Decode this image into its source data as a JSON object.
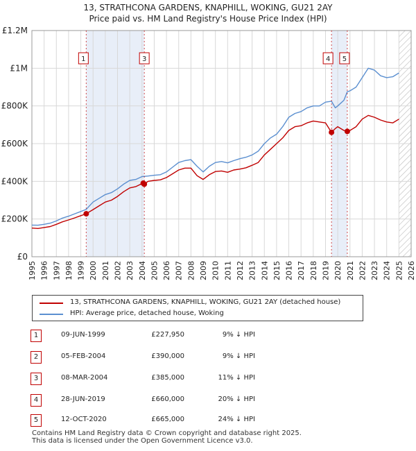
{
  "title_line1": "13, STRATHCONA GARDENS, KNAPHILL, WOKING, GU21 2AY",
  "title_line2": "Price paid vs. HM Land Registry's House Price Index (HPI)",
  "colors": {
    "hpi": "#5b8fd0",
    "price": "#c00000",
    "shade": "#e8eef8",
    "grid": "#d8d8d8",
    "marker": "#c00000"
  },
  "chart_data": {
    "type": "line",
    "x_range": [
      1995,
      2026
    ],
    "ylim": [
      0,
      1200000
    ],
    "y_ticks": [
      0,
      200000,
      400000,
      600000,
      800000,
      1000000,
      1200000
    ],
    "y_tick_labels": [
      "£0",
      "£200K",
      "£400K",
      "£600K",
      "£800K",
      "£1M",
      "£1.2M"
    ],
    "x_ticks": [
      1995,
      1996,
      1997,
      1998,
      1999,
      2000,
      2001,
      2002,
      2003,
      2004,
      2005,
      2006,
      2007,
      2008,
      2009,
      2010,
      2011,
      2012,
      2013,
      2014,
      2015,
      2016,
      2017,
      2018,
      2019,
      2020,
      2021,
      2022,
      2023,
      2024,
      2025,
      2026
    ],
    "grid": true,
    "shaded_ranges": [
      [
        1999.44,
        2004.19
      ],
      [
        2019.49,
        2020.78
      ]
    ],
    "hatched_from": 2025.0,
    "series": [
      {
        "name": "HPI: Average price, detached house, Woking",
        "x": [
          1995.0,
          1995.5,
          1996.0,
          1996.5,
          1997.0,
          1997.5,
          1998.0,
          1998.5,
          1999.0,
          1999.44,
          2000.0,
          2000.5,
          2001.0,
          2001.5,
          2002.0,
          2002.5,
          2003.0,
          2003.5,
          2004.0,
          2004.5,
          2005.0,
          2005.5,
          2006.0,
          2006.5,
          2007.0,
          2007.5,
          2008.0,
          2008.5,
          2009.0,
          2009.5,
          2010.0,
          2010.5,
          2011.0,
          2011.5,
          2012.0,
          2012.5,
          2013.0,
          2013.5,
          2014.0,
          2014.5,
          2015.0,
          2015.5,
          2016.0,
          2016.5,
          2017.0,
          2017.5,
          2018.0,
          2018.5,
          2019.0,
          2019.49,
          2019.8,
          2020.0,
          2020.5,
          2020.78,
          2021.0,
          2021.5,
          2022.0,
          2022.5,
          2023.0,
          2023.5,
          2024.0,
          2024.5,
          2025.0
        ],
        "y": [
          168000,
          167000,
          172000,
          178000,
          190000,
          205000,
          215000,
          228000,
          240000,
          251000,
          290000,
          310000,
          330000,
          340000,
          360000,
          385000,
          405000,
          410000,
          425000,
          428000,
          432000,
          435000,
          450000,
          475000,
          500000,
          510000,
          515000,
          480000,
          450000,
          480000,
          500000,
          505000,
          498000,
          510000,
          520000,
          528000,
          540000,
          560000,
          600000,
          630000,
          650000,
          690000,
          740000,
          760000,
          770000,
          790000,
          800000,
          800000,
          820000,
          825000,
          790000,
          800000,
          830000,
          875000,
          880000,
          900000,
          950000,
          1000000,
          990000,
          960000,
          950000,
          955000,
          975000
        ]
      },
      {
        "name": "13, STRATHCONA GARDENS, KNAPHILL, WOKING, GU21 2AY (detached house)",
        "x": [
          1995.0,
          1995.5,
          1996.0,
          1996.5,
          1997.0,
          1997.5,
          1998.0,
          1998.5,
          1999.0,
          1999.44,
          2000.0,
          2000.5,
          2001.0,
          2001.5,
          2002.0,
          2002.5,
          2003.0,
          2003.5,
          2004.0,
          2004.1,
          2004.19,
          2004.5,
          2005.0,
          2005.5,
          2006.0,
          2006.5,
          2007.0,
          2007.5,
          2008.0,
          2008.5,
          2009.0,
          2009.5,
          2010.0,
          2010.5,
          2011.0,
          2011.5,
          2012.0,
          2012.5,
          2013.0,
          2013.5,
          2014.0,
          2014.5,
          2015.0,
          2015.5,
          2016.0,
          2016.5,
          2017.0,
          2017.5,
          2018.0,
          2018.5,
          2019.0,
          2019.49,
          2019.8,
          2020.0,
          2020.5,
          2020.78,
          2021.0,
          2021.5,
          2022.0,
          2022.5,
          2023.0,
          2023.5,
          2024.0,
          2024.5,
          2025.0
        ],
        "y": [
          152000,
          150000,
          155000,
          160000,
          172000,
          185000,
          195000,
          206000,
          218000,
          227950,
          250000,
          270000,
          290000,
          300000,
          320000,
          345000,
          365000,
          372000,
          388000,
          390000,
          385000,
          400000,
          405000,
          408000,
          420000,
          440000,
          460000,
          470000,
          470000,
          430000,
          410000,
          435000,
          452000,
          455000,
          448000,
          460000,
          465000,
          472000,
          485000,
          500000,
          540000,
          570000,
          600000,
          630000,
          670000,
          690000,
          695000,
          710000,
          720000,
          715000,
          710000,
          660000,
          680000,
          690000,
          670000,
          665000,
          670000,
          690000,
          730000,
          750000,
          740000,
          725000,
          715000,
          710000,
          730000
        ]
      }
    ],
    "markers": [
      {
        "label": "1",
        "x": 1999.44,
        "y": 227950
      },
      {
        "label": "2",
        "x": 2004.1,
        "y": 390000
      },
      {
        "label": "3",
        "x": 2004.19,
        "y": 385000
      },
      {
        "label": "4",
        "x": 2019.49,
        "y": 660000
      },
      {
        "label": "5",
        "x": 2020.78,
        "y": 665000
      }
    ],
    "flag_labels": [
      "1",
      "3",
      "4",
      "5"
    ]
  },
  "legend": {
    "price_label": "13, STRATHCONA GARDENS, KNAPHILL, WOKING, GU21 2AY (detached house)",
    "hpi_label": "HPI: Average price, detached house, Woking"
  },
  "transactions": [
    {
      "num": "1",
      "date": "09-JUN-1999",
      "price": "£227,950",
      "pct": "9% ↓ HPI"
    },
    {
      "num": "2",
      "date": "05-FEB-2004",
      "price": "£390,000",
      "pct": "9% ↓ HPI"
    },
    {
      "num": "3",
      "date": "08-MAR-2004",
      "price": "£385,000",
      "pct": "11% ↓ HPI"
    },
    {
      "num": "4",
      "date": "28-JUN-2019",
      "price": "£660,000",
      "pct": "20% ↓ HPI"
    },
    {
      "num": "5",
      "date": "12-OCT-2020",
      "price": "£665,000",
      "pct": "24% ↓ HPI"
    }
  ],
  "footer_line1": "Contains HM Land Registry data © Crown copyright and database right 2025.",
  "footer_line2": "This data is licensed under the Open Government Licence v3.0."
}
